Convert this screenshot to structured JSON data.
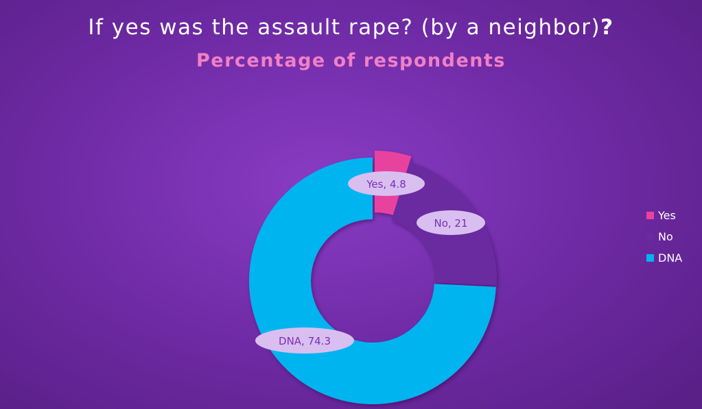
{
  "chart_data": {
    "type": "pie",
    "variant": "donut",
    "title": "If yes was the assault rape? (by a neighbor)",
    "title_suffix": "?",
    "subtitle": "Percentage of respondents",
    "categories": [
      "Yes",
      "No",
      "DNA"
    ],
    "values": [
      4.8,
      21,
      74.3
    ],
    "data_labels": [
      "Yes, 4.8",
      "No, 21",
      "DNA, 74.3"
    ],
    "colors": [
      "#e8439f",
      "#6b2aa0",
      "#00b4f0"
    ],
    "legend": {
      "position": "right",
      "entries": [
        "Yes",
        "No",
        "DNA"
      ]
    }
  }
}
